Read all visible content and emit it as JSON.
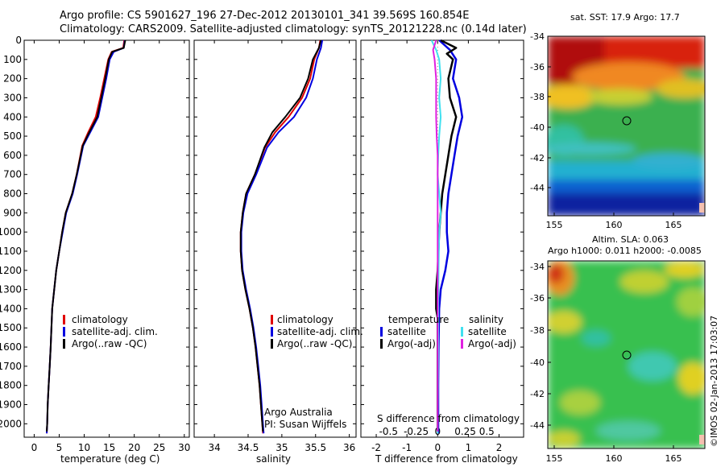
{
  "header": {
    "line1": "Argo profile: CS 5901627_196 27-Dec-2012 20130101_341 39.569S 160.854E",
    "line2": "Climatology: CARS2009. Satellite-adjusted climatology: synTS_20121228.nc (0.14d later)"
  },
  "colors": {
    "climatology": "#e00000",
    "satellite": "#0000e0",
    "argo": "#000000",
    "salinity_satellite": "#40e0f0",
    "salinity_argo": "#e020e0"
  },
  "legend_profiles": [
    "climatology",
    "satellite-adj. clim.",
    "Argo(..raw -QC)"
  ],
  "legend_diff": {
    "temperature_title": "temperature",
    "salinity_title": "salinity",
    "satellite": "satellite",
    "argo_adj": "Argo(-adj)"
  },
  "credit": {
    "line1": "Argo Australia",
    "line2": "PI: Susan Wijffels"
  },
  "diff_labels": {
    "top": "S difference from climatology",
    "bottom": "T difference from climatology"
  },
  "maps": {
    "sst_title": "sat. SST: 17.9 Argo: 17.7",
    "sla_title1": "Altim. SLA: 0.063",
    "sla_title2": "Argo h1000: 0.011 h2000: -0.0085",
    "lat_ticks": [
      "-34",
      "-36",
      "-38",
      "-40",
      "-42",
      "-44"
    ],
    "lon_ticks": [
      "155",
      "160",
      "165"
    ],
    "float_marker": {
      "lon": 160.854,
      "lat": -39.569
    }
  },
  "side_stamp": "©IMOS 02-Jan-2013 17:03:07",
  "chart_data": [
    {
      "type": "line",
      "title": "",
      "xlabel": "temperature (deg C)",
      "ylabel": "",
      "xlim": [
        -2,
        31
      ],
      "ylim": [
        2070,
        0
      ],
      "xticks": [
        0,
        5,
        10,
        15,
        20,
        25,
        30
      ],
      "yticks": [
        0,
        100,
        200,
        300,
        400,
        500,
        600,
        700,
        800,
        900,
        1000,
        1100,
        1200,
        1300,
        1400,
        1500,
        1600,
        1700,
        1800,
        1900,
        2000
      ],
      "series": [
        {
          "name": "climatology",
          "points": [
            [
              18,
              0
            ],
            [
              17.8,
              40
            ],
            [
              15.5,
              60
            ],
            [
              14.8,
              100
            ],
            [
              14,
              200
            ],
            [
              13.2,
              300
            ],
            [
              12.3,
              400
            ],
            [
              10.8,
              480
            ],
            [
              9.6,
              550
            ],
            [
              8.5,
              700
            ],
            [
              7.6,
              800
            ],
            [
              6.3,
              900
            ],
            [
              5.6,
              1000
            ],
            [
              5,
              1100
            ],
            [
              4.4,
              1200
            ],
            [
              4,
              1300
            ],
            [
              3.6,
              1400
            ],
            [
              3.3,
              1600
            ],
            [
              3.1,
              1700
            ],
            [
              2.9,
              1800
            ],
            [
              2.7,
              1900
            ],
            [
              2.6,
              2000
            ],
            [
              2.5,
              2050
            ]
          ]
        },
        {
          "name": "satellite-adj. clim.",
          "points": [
            [
              18.1,
              0
            ],
            [
              17.9,
              40
            ],
            [
              15.9,
              60
            ],
            [
              15.1,
              100
            ],
            [
              14.4,
              200
            ],
            [
              13.6,
              300
            ],
            [
              12.8,
              400
            ],
            [
              11.2,
              480
            ],
            [
              9.8,
              550
            ],
            [
              8.6,
              700
            ],
            [
              7.7,
              800
            ],
            [
              6.4,
              900
            ],
            [
              5.7,
              1000
            ],
            [
              5,
              1100
            ],
            [
              4.4,
              1200
            ],
            [
              4,
              1300
            ],
            [
              3.6,
              1400
            ],
            [
              3.3,
              1600
            ],
            [
              3.1,
              1700
            ],
            [
              2.9,
              1800
            ],
            [
              2.7,
              1900
            ],
            [
              2.6,
              2000
            ],
            [
              2.5,
              2050
            ]
          ]
        },
        {
          "name": "Argo(..raw -QC)",
          "points": [
            [
              18.2,
              0
            ],
            [
              17.9,
              40
            ],
            [
              15.6,
              60
            ],
            [
              14.9,
              100
            ],
            [
              14.2,
              200
            ],
            [
              13.4,
              300
            ],
            [
              12.6,
              400
            ],
            [
              11,
              480
            ],
            [
              9.7,
              550
            ],
            [
              8.5,
              700
            ],
            [
              7.6,
              800
            ],
            [
              6.3,
              900
            ],
            [
              5.6,
              1000
            ],
            [
              5,
              1100
            ],
            [
              4.4,
              1200
            ],
            [
              4,
              1300
            ],
            [
              3.6,
              1400
            ],
            [
              3.3,
              1600
            ],
            [
              3.1,
              1700
            ],
            [
              2.9,
              1800
            ],
            [
              2.7,
              1900
            ],
            [
              2.6,
              2000
            ],
            [
              2.5,
              2040
            ]
          ]
        }
      ]
    },
    {
      "type": "line",
      "title": "",
      "xlabel": "salinity",
      "ylabel": "",
      "xlim": [
        33.7,
        36.1
      ],
      "ylim": [
        2070,
        0
      ],
      "xticks": [
        34,
        34.5,
        35,
        35.5,
        36
      ],
      "yticks": [
        0,
        100,
        200,
        300,
        400,
        500,
        600,
        700,
        800,
        900,
        1000,
        1100,
        1200,
        1300,
        1400,
        1500,
        1600,
        1700,
        1800,
        1900,
        2000
      ],
      "series": [
        {
          "name": "climatology",
          "points": [
            [
              35.57,
              0
            ],
            [
              35.55,
              40
            ],
            [
              35.48,
              100
            ],
            [
              35.42,
              200
            ],
            [
              35.3,
              300
            ],
            [
              35.1,
              400
            ],
            [
              34.9,
              480
            ],
            [
              34.75,
              560
            ],
            [
              34.6,
              700
            ],
            [
              34.47,
              800
            ],
            [
              34.42,
              900
            ],
            [
              34.39,
              1000
            ],
            [
              34.39,
              1100
            ],
            [
              34.41,
              1200
            ],
            [
              34.46,
              1300
            ],
            [
              34.52,
              1400
            ],
            [
              34.57,
              1500
            ],
            [
              34.61,
              1600
            ],
            [
              34.64,
              1700
            ],
            [
              34.67,
              1800
            ],
            [
              34.69,
              1900
            ],
            [
              34.71,
              2000
            ],
            [
              34.72,
              2050
            ]
          ]
        },
        {
          "name": "satellite-adj. clim.",
          "points": [
            [
              35.6,
              0
            ],
            [
              35.58,
              40
            ],
            [
              35.52,
              100
            ],
            [
              35.46,
              200
            ],
            [
              35.36,
              300
            ],
            [
              35.18,
              400
            ],
            [
              34.95,
              480
            ],
            [
              34.78,
              560
            ],
            [
              34.62,
              700
            ],
            [
              34.49,
              800
            ],
            [
              34.43,
              900
            ],
            [
              34.4,
              1000
            ],
            [
              34.4,
              1100
            ],
            [
              34.42,
              1200
            ],
            [
              34.47,
              1300
            ],
            [
              34.53,
              1400
            ],
            [
              34.58,
              1500
            ],
            [
              34.62,
              1600
            ],
            [
              34.65,
              1700
            ],
            [
              34.68,
              1800
            ],
            [
              34.7,
              1900
            ],
            [
              34.72,
              2000
            ],
            [
              34.73,
              2050
            ]
          ]
        },
        {
          "name": "Argo(..raw -QC)",
          "points": [
            [
              35.58,
              0
            ],
            [
              35.55,
              40
            ],
            [
              35.46,
              100
            ],
            [
              35.39,
              200
            ],
            [
              35.27,
              300
            ],
            [
              35.05,
              400
            ],
            [
              34.86,
              480
            ],
            [
              34.74,
              560
            ],
            [
              34.6,
              700
            ],
            [
              34.47,
              800
            ],
            [
              34.42,
              900
            ],
            [
              34.39,
              1000
            ],
            [
              34.39,
              1100
            ],
            [
              34.41,
              1200
            ],
            [
              34.46,
              1300
            ],
            [
              34.52,
              1400
            ],
            [
              34.57,
              1500
            ],
            [
              34.61,
              1600
            ],
            [
              34.64,
              1700
            ],
            [
              34.67,
              1800
            ],
            [
              34.69,
              1900
            ],
            [
              34.71,
              2000
            ],
            [
              34.72,
              2040
            ]
          ]
        }
      ]
    },
    {
      "type": "line",
      "title": "",
      "xlabel": "T difference from climatology",
      "ylabel": "",
      "xlim": [
        -2.5,
        2.8
      ],
      "ylim": [
        2070,
        0
      ],
      "xticks": [
        -2,
        -1,
        0,
        1,
        2
      ],
      "top_xticks": [
        {
          "v": -1.6,
          "label": "-0.5"
        },
        {
          "v": -0.7,
          "label": "-0.25"
        },
        {
          "v": 0,
          "label": "0"
        },
        {
          "v": 0.9,
          "label": "0.25"
        },
        {
          "v": 1.6,
          "label": "0.5"
        }
      ],
      "yticks": [
        0,
        100,
        200,
        300,
        400,
        500,
        600,
        700,
        800,
        900,
        1000,
        1100,
        1200,
        1300,
        1400,
        1500,
        1600,
        1700,
        1800,
        1900,
        2000
      ],
      "series": [
        {
          "name": "T satellite",
          "points": [
            [
              0.05,
              0
            ],
            [
              0.4,
              50
            ],
            [
              0.6,
              100
            ],
            [
              0.5,
              200
            ],
            [
              0.7,
              300
            ],
            [
              0.8,
              400
            ],
            [
              0.65,
              500
            ],
            [
              0.55,
              600
            ],
            [
              0.45,
              700
            ],
            [
              0.35,
              800
            ],
            [
              0.3,
              900
            ],
            [
              0.3,
              1000
            ],
            [
              0.35,
              1100
            ],
            [
              0.25,
              1200
            ],
            [
              0.1,
              1300
            ],
            [
              0.05,
              1400
            ],
            [
              0.03,
              1600
            ],
            [
              0.02,
              1800
            ],
            [
              0.02,
              2050
            ]
          ]
        },
        {
          "name": "T Argo(-adj)",
          "points": [
            [
              0.1,
              0
            ],
            [
              0.6,
              40
            ],
            [
              0.3,
              70
            ],
            [
              0.5,
              100
            ],
            [
              0.35,
              200
            ],
            [
              0.4,
              300
            ],
            [
              0.6,
              400
            ],
            [
              0.45,
              500
            ],
            [
              0.35,
              600
            ],
            [
              0.25,
              700
            ],
            [
              0.15,
              800
            ],
            [
              0.05,
              1000
            ],
            [
              0,
              1200
            ],
            [
              -0.05,
              1300
            ],
            [
              -0.05,
              1400
            ],
            [
              0,
              1450
            ],
            [
              0,
              1600
            ],
            [
              0,
              2040
            ]
          ]
        },
        {
          "name": "S satellite",
          "points": [
            [
              -0.2,
              0
            ],
            [
              -0.05,
              50
            ],
            [
              0.05,
              100
            ],
            [
              0.1,
              200
            ],
            [
              0.05,
              300
            ],
            [
              0.1,
              400
            ],
            [
              0.05,
              500
            ],
            [
              0.02,
              600
            ],
            [
              0,
              700
            ],
            [
              0.05,
              800
            ],
            [
              0.1,
              900
            ],
            [
              0.05,
              1000
            ],
            [
              0.03,
              1200
            ],
            [
              0.02,
              1400
            ],
            [
              0.02,
              1600
            ],
            [
              0.01,
              1800
            ],
            [
              0,
              2050
            ]
          ]
        },
        {
          "name": "S Argo(-adj)",
          "points": [
            [
              -0.05,
              0
            ],
            [
              -0.15,
              50
            ],
            [
              -0.1,
              100
            ],
            [
              -0.05,
              200
            ],
            [
              -0.05,
              300
            ],
            [
              -0.05,
              400
            ],
            [
              -0.03,
              500
            ],
            [
              0,
              600
            ],
            [
              0,
              800
            ],
            [
              0,
              1000
            ],
            [
              0,
              1200
            ],
            [
              0,
              1400
            ],
            [
              0,
              1600
            ],
            [
              0,
              2040
            ]
          ]
        }
      ]
    }
  ]
}
